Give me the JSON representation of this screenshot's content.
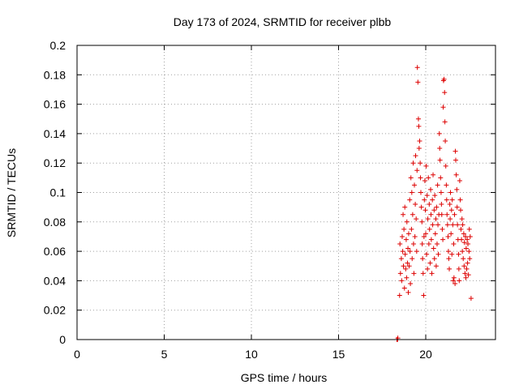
{
  "chart_data": {
    "type": "scatter",
    "title": "Day 173 of 2024, SRMTID for receiver plbb",
    "xlabel": "GPS time / hours",
    "ylabel": "SRMTID / TECUs",
    "xlim": [
      0,
      24
    ],
    "ylim": [
      0,
      0.2
    ],
    "xticks": [
      0,
      5,
      10,
      15,
      20
    ],
    "xtick_labels": [
      "0",
      "5",
      "10",
      "15",
      "20"
    ],
    "yticks": [
      0,
      0.02,
      0.04,
      0.06,
      0.08,
      0.1,
      0.12,
      0.14,
      0.16,
      0.18,
      0.2
    ],
    "ytick_labels": [
      "0",
      "0.02",
      "0.04",
      "0.06",
      "0.08",
      "0.1",
      "0.12",
      "0.14",
      "0.16",
      "0.18",
      "0.2"
    ],
    "grid": true,
    "marker": "+",
    "color": "#dd0000",
    "series": [
      {
        "name": "SRMTID",
        "points": [
          [
            18.35,
            0.0
          ],
          [
            18.38,
            0.0
          ],
          [
            18.4,
            0.001
          ],
          [
            18.5,
            0.03
          ],
          [
            18.52,
            0.065
          ],
          [
            18.55,
            0.045
          ],
          [
            18.6,
            0.055
          ],
          [
            18.62,
            0.04
          ],
          [
            18.65,
            0.07
          ],
          [
            18.68,
            0.06
          ],
          [
            18.7,
            0.085
          ],
          [
            18.72,
            0.05
          ],
          [
            18.75,
            0.075
          ],
          [
            18.78,
            0.035
          ],
          [
            18.8,
            0.09
          ],
          [
            18.82,
            0.058
          ],
          [
            18.85,
            0.048
          ],
          [
            18.88,
            0.068
          ],
          [
            18.9,
            0.042
          ],
          [
            18.92,
            0.08
          ],
          [
            18.95,
            0.052
          ],
          [
            18.98,
            0.062
          ],
          [
            19.0,
            0.032
          ],
          [
            19.02,
            0.072
          ],
          [
            19.05,
            0.05
          ],
          [
            19.08,
            0.095
          ],
          [
            19.1,
            0.06
          ],
          [
            19.12,
            0.038
          ],
          [
            19.15,
            0.11
          ],
          [
            19.18,
            0.075
          ],
          [
            19.2,
            0.1
          ],
          [
            19.22,
            0.055
          ],
          [
            19.25,
            0.085
          ],
          [
            19.28,
            0.12
          ],
          [
            19.3,
            0.065
          ],
          [
            19.32,
            0.045
          ],
          [
            19.35,
            0.105
          ],
          [
            19.38,
            0.07
          ],
          [
            19.4,
            0.092
          ],
          [
            19.42,
            0.125
          ],
          [
            19.45,
            0.082
          ],
          [
            19.48,
            0.06
          ],
          [
            19.5,
            0.115
          ],
          [
            19.52,
            0.185
          ],
          [
            19.55,
            0.175
          ],
          [
            19.58,
            0.15
          ],
          [
            19.6,
            0.145
          ],
          [
            19.62,
            0.13
          ],
          [
            19.65,
            0.135
          ],
          [
            19.68,
            0.12
          ],
          [
            19.7,
            0.11
          ],
          [
            19.72,
            0.1
          ],
          [
            19.75,
            0.09
          ],
          [
            19.78,
            0.08
          ],
          [
            19.8,
            0.065
          ],
          [
            19.82,
            0.055
          ],
          [
            19.85,
            0.045
          ],
          [
            19.88,
            0.03
          ],
          [
            19.9,
            0.07
          ],
          [
            19.92,
            0.095
          ],
          [
            19.95,
            0.108
          ],
          [
            19.98,
            0.088
          ],
          [
            20.0,
            0.072
          ],
          [
            20.02,
            0.118
          ],
          [
            20.05,
            0.058
          ],
          [
            20.08,
            0.098
          ],
          [
            20.1,
            0.048
          ],
          [
            20.12,
            0.082
          ],
          [
            20.15,
            0.11
          ],
          [
            20.18,
            0.065
          ],
          [
            20.2,
            0.092
          ],
          [
            20.22,
            0.075
          ],
          [
            20.25,
            0.052
          ],
          [
            20.28,
            0.102
          ],
          [
            20.3,
            0.085
          ],
          [
            20.32,
            0.068
          ],
          [
            20.35,
            0.045
          ],
          [
            20.38,
            0.095
          ],
          [
            20.4,
            0.078
          ],
          [
            20.42,
            0.112
          ],
          [
            20.45,
            0.062
          ],
          [
            20.48,
            0.088
          ],
          [
            20.5,
            0.055
          ],
          [
            20.52,
            0.098
          ],
          [
            20.55,
            0.072
          ],
          [
            20.58,
            0.082
          ],
          [
            20.6,
            0.05
          ],
          [
            20.62,
            0.09
          ],
          [
            20.65,
            0.065
          ],
          [
            20.68,
            0.105
          ],
          [
            20.7,
            0.078
          ],
          [
            20.72,
            0.058
          ],
          [
            20.75,
            0.085
          ],
          [
            20.78,
            0.14
          ],
          [
            20.8,
            0.13
          ],
          [
            20.82,
            0.122
          ],
          [
            20.85,
            0.11
          ],
          [
            20.88,
            0.1
          ],
          [
            20.9,
            0.092
          ],
          [
            20.92,
            0.085
          ],
          [
            20.95,
            0.075
          ],
          [
            20.98,
            0.068
          ],
          [
            21.0,
            0.158
          ],
          [
            21.02,
            0.176
          ],
          [
            21.05,
            0.177
          ],
          [
            21.08,
            0.168
          ],
          [
            21.1,
            0.148
          ],
          [
            21.12,
            0.135
          ],
          [
            21.15,
            0.118
          ],
          [
            21.18,
            0.105
          ],
          [
            21.2,
            0.095
          ],
          [
            21.22,
            0.085
          ],
          [
            21.25,
            0.078
          ],
          [
            21.28,
            0.07
          ],
          [
            21.3,
            0.06
          ],
          [
            21.32,
            0.055
          ],
          [
            21.35,
            0.048
          ],
          [
            21.38,
            0.092
          ],
          [
            21.4,
            0.082
          ],
          [
            21.42,
            0.1
          ],
          [
            21.45,
            0.072
          ],
          [
            21.48,
            0.088
          ],
          [
            21.5,
            0.058
          ],
          [
            21.52,
            0.095
          ],
          [
            21.55,
            0.078
          ],
          [
            21.58,
            0.04
          ],
          [
            21.6,
            0.065
          ],
          [
            21.62,
            0.042
          ],
          [
            21.65,
            0.085
          ],
          [
            21.68,
            0.038
          ],
          [
            21.7,
            0.128
          ],
          [
            21.72,
            0.122
          ],
          [
            21.75,
            0.112
          ],
          [
            21.78,
            0.102
          ],
          [
            21.8,
            0.09
          ],
          [
            21.82,
            0.078
          ],
          [
            21.85,
            0.068
          ],
          [
            21.88,
            0.058
          ],
          [
            21.9,
            0.048
          ],
          [
            21.92,
            0.04
          ],
          [
            21.95,
            0.108
          ],
          [
            21.98,
            0.095
          ],
          [
            22.0,
            0.088
          ],
          [
            22.02,
            0.075
          ],
          [
            22.05,
            0.068
          ],
          [
            22.08,
            0.082
          ],
          [
            22.1,
            0.06
          ],
          [
            22.12,
            0.078
          ],
          [
            22.15,
            0.055
          ],
          [
            22.18,
            0.072
          ],
          [
            22.2,
            0.05
          ],
          [
            22.22,
            0.066
          ],
          [
            22.25,
            0.045
          ],
          [
            22.28,
            0.07
          ],
          [
            22.3,
            0.042
          ],
          [
            22.32,
            0.062
          ],
          [
            22.35,
            0.048
          ],
          [
            22.38,
            0.068
          ],
          [
            22.4,
            0.052
          ],
          [
            22.42,
            0.065
          ],
          [
            22.45,
            0.044
          ],
          [
            22.48,
            0.06
          ],
          [
            22.5,
            0.075
          ],
          [
            22.52,
            0.055
          ],
          [
            22.55,
            0.07
          ],
          [
            22.6,
            0.028
          ]
        ]
      }
    ]
  }
}
